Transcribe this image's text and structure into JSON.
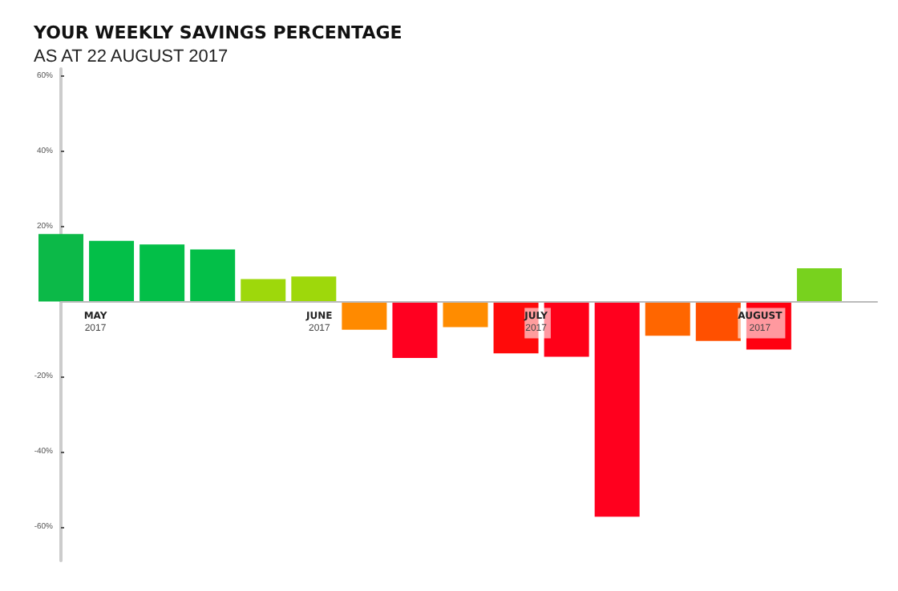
{
  "chart_data": {
    "type": "bar",
    "title": "YOUR WEEKLY SAVINGS PERCENTAGE",
    "subtitle": "AS AT 22 AUGUST 2017",
    "x": [
      "2017-04-26",
      "2017-05-03",
      "2017-05-10",
      "2017-05-17",
      "2017-05-24",
      "2017-05-31",
      "2017-06-07",
      "2017-06-14",
      "2017-06-21",
      "2017-06-28",
      "2017-07-05",
      "2017-07-12",
      "2017-07-19",
      "2017-07-26",
      "2017-08-02",
      "2017-08-09"
    ],
    "values": [
      18,
      16.2,
      15.2,
      13.9,
      6,
      6.7,
      -7.5,
      -15,
      -6.8,
      -13.8,
      -14.7,
      -57.3,
      -9.1,
      -10.5,
      -12.8,
      8.9
    ],
    "colors": [
      "#0cb948",
      "#03bf48",
      "#03bf48",
      "#03bf48",
      "#9ed80b",
      "#9ed80b",
      "#ff8a00",
      "#ff0020",
      "#ff8c00",
      "#ff0a0a",
      "#ff0018",
      "#ff001e",
      "#ff6600",
      "#ff5000",
      "#ff0010",
      "#78d21e"
    ],
    "xlim": [
      "2017-04-26",
      "2017-08-17"
    ],
    "xticks": [
      {
        "value": "2017-05-01",
        "label": "MAY 2017"
      },
      {
        "value": "2017-06-01",
        "label": "JUNE 2017"
      },
      {
        "value": "2017-07-01",
        "label": "JULY 2017"
      },
      {
        "value": "2017-08-01",
        "label": "AUGUST 2017"
      }
    ],
    "ylim": [
      -69,
      62
    ],
    "yticks": [
      {
        "value": -60,
        "label": "-60%"
      },
      {
        "value": -40,
        "label": "-40%"
      },
      {
        "value": -20,
        "label": "-20%"
      },
      {
        "value": 20,
        "label": "20%"
      },
      {
        "value": 40,
        "label": "40%"
      },
      {
        "value": 60,
        "label": "60%"
      }
    ],
    "grid": false
  }
}
